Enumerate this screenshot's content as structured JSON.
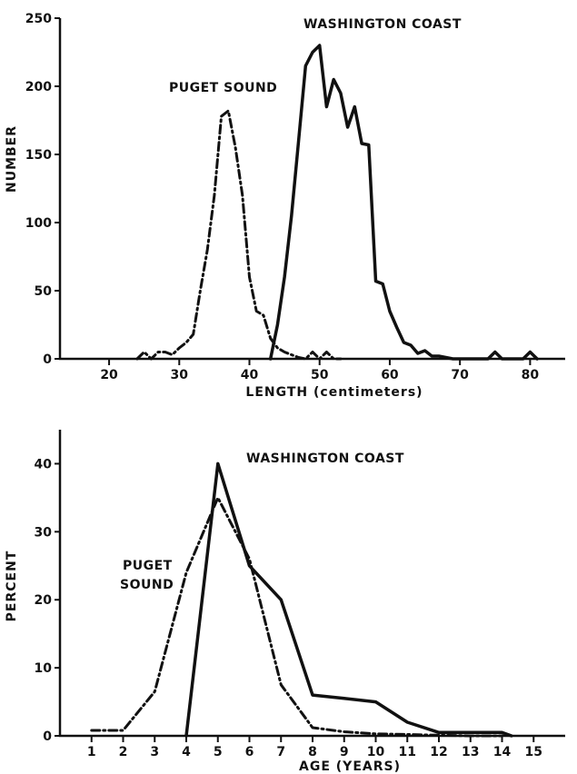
{
  "chart_data": [
    {
      "type": "line",
      "xlabel": "LENGTH (centimeters)",
      "ylabel": "NUMBER",
      "xlim": [
        13,
        85
      ],
      "ylim": [
        0,
        250
      ],
      "x_ticks": [
        20,
        30,
        40,
        50,
        60,
        70,
        80
      ],
      "y_ticks": [
        0,
        50,
        100,
        150,
        200,
        250
      ],
      "grid": false,
      "series": [
        {
          "name": "PUGET SOUND",
          "style": "dash-dot",
          "color": "#111111",
          "x": [
            24,
            25,
            26,
            27,
            28,
            29,
            30,
            31,
            32,
            33,
            34,
            35,
            36,
            37,
            38,
            39,
            40,
            41,
            42,
            43,
            44,
            45,
            46,
            47,
            48,
            49,
            50,
            51,
            52,
            53
          ],
          "y": [
            0,
            5,
            0,
            5,
            5,
            3,
            8,
            12,
            18,
            50,
            80,
            120,
            178,
            182,
            155,
            120,
            60,
            35,
            32,
            15,
            8,
            5,
            3,
            1,
            0,
            5,
            0,
            5,
            0,
            0
          ]
        },
        {
          "name": "WASHINGTON COAST",
          "style": "solid",
          "color": "#111111",
          "x": [
            43,
            44,
            45,
            46,
            47,
            48,
            49,
            50,
            51,
            52,
            53,
            54,
            55,
            56,
            57,
            58,
            59,
            60,
            61,
            62,
            63,
            64,
            65,
            66,
            67,
            68,
            69,
            70,
            74,
            75,
            76,
            79,
            80,
            81
          ],
          "y": [
            0,
            25,
            60,
            105,
            160,
            215,
            225,
            230,
            185,
            205,
            195,
            170,
            185,
            158,
            157,
            57,
            55,
            35,
            23,
            12,
            10,
            4,
            6,
            2,
            2,
            1,
            0,
            0,
            0,
            5,
            0,
            0,
            5,
            0
          ]
        }
      ]
    },
    {
      "type": "line",
      "xlabel": "AGE (YEARS)",
      "ylabel": "PERCENT",
      "xlim": [
        0,
        16
      ],
      "ylim": [
        0,
        45
      ],
      "x_ticks": [
        1,
        2,
        3,
        4,
        5,
        6,
        7,
        8,
        9,
        10,
        11,
        12,
        13,
        14,
        15
      ],
      "y_ticks": [
        0,
        10,
        20,
        30,
        40
      ],
      "grid": false,
      "series": [
        {
          "name": "PUGET SOUND",
          "style": "dash-dot",
          "color": "#111111",
          "x": [
            1,
            2,
            3,
            4,
            5,
            6,
            7,
            8,
            9,
            10,
            11,
            12,
            13,
            14
          ],
          "y": [
            0.8,
            0.8,
            6.5,
            24,
            35,
            26,
            7.5,
            1.2,
            0.6,
            0.3,
            0.2,
            0.1,
            0,
            0
          ]
        },
        {
          "name": "WASHINGTON COAST",
          "style": "solid",
          "color": "#111111",
          "x": [
            4,
            5,
            6,
            7,
            8,
            9,
            10,
            11,
            12,
            13,
            14,
            14.3
          ],
          "y": [
            0,
            40,
            25,
            20,
            6,
            5.5,
            5,
            2,
            0.5,
            0.5,
            0.5,
            0
          ]
        }
      ]
    }
  ],
  "labels": {
    "top_puget": "PUGET SOUND",
    "top_washington": "WASHINGTON COAST",
    "bottom_washington": "WASHINGTON COAST",
    "bottom_puget_line1": "PUGET",
    "bottom_puget_line2": "SOUND"
  }
}
